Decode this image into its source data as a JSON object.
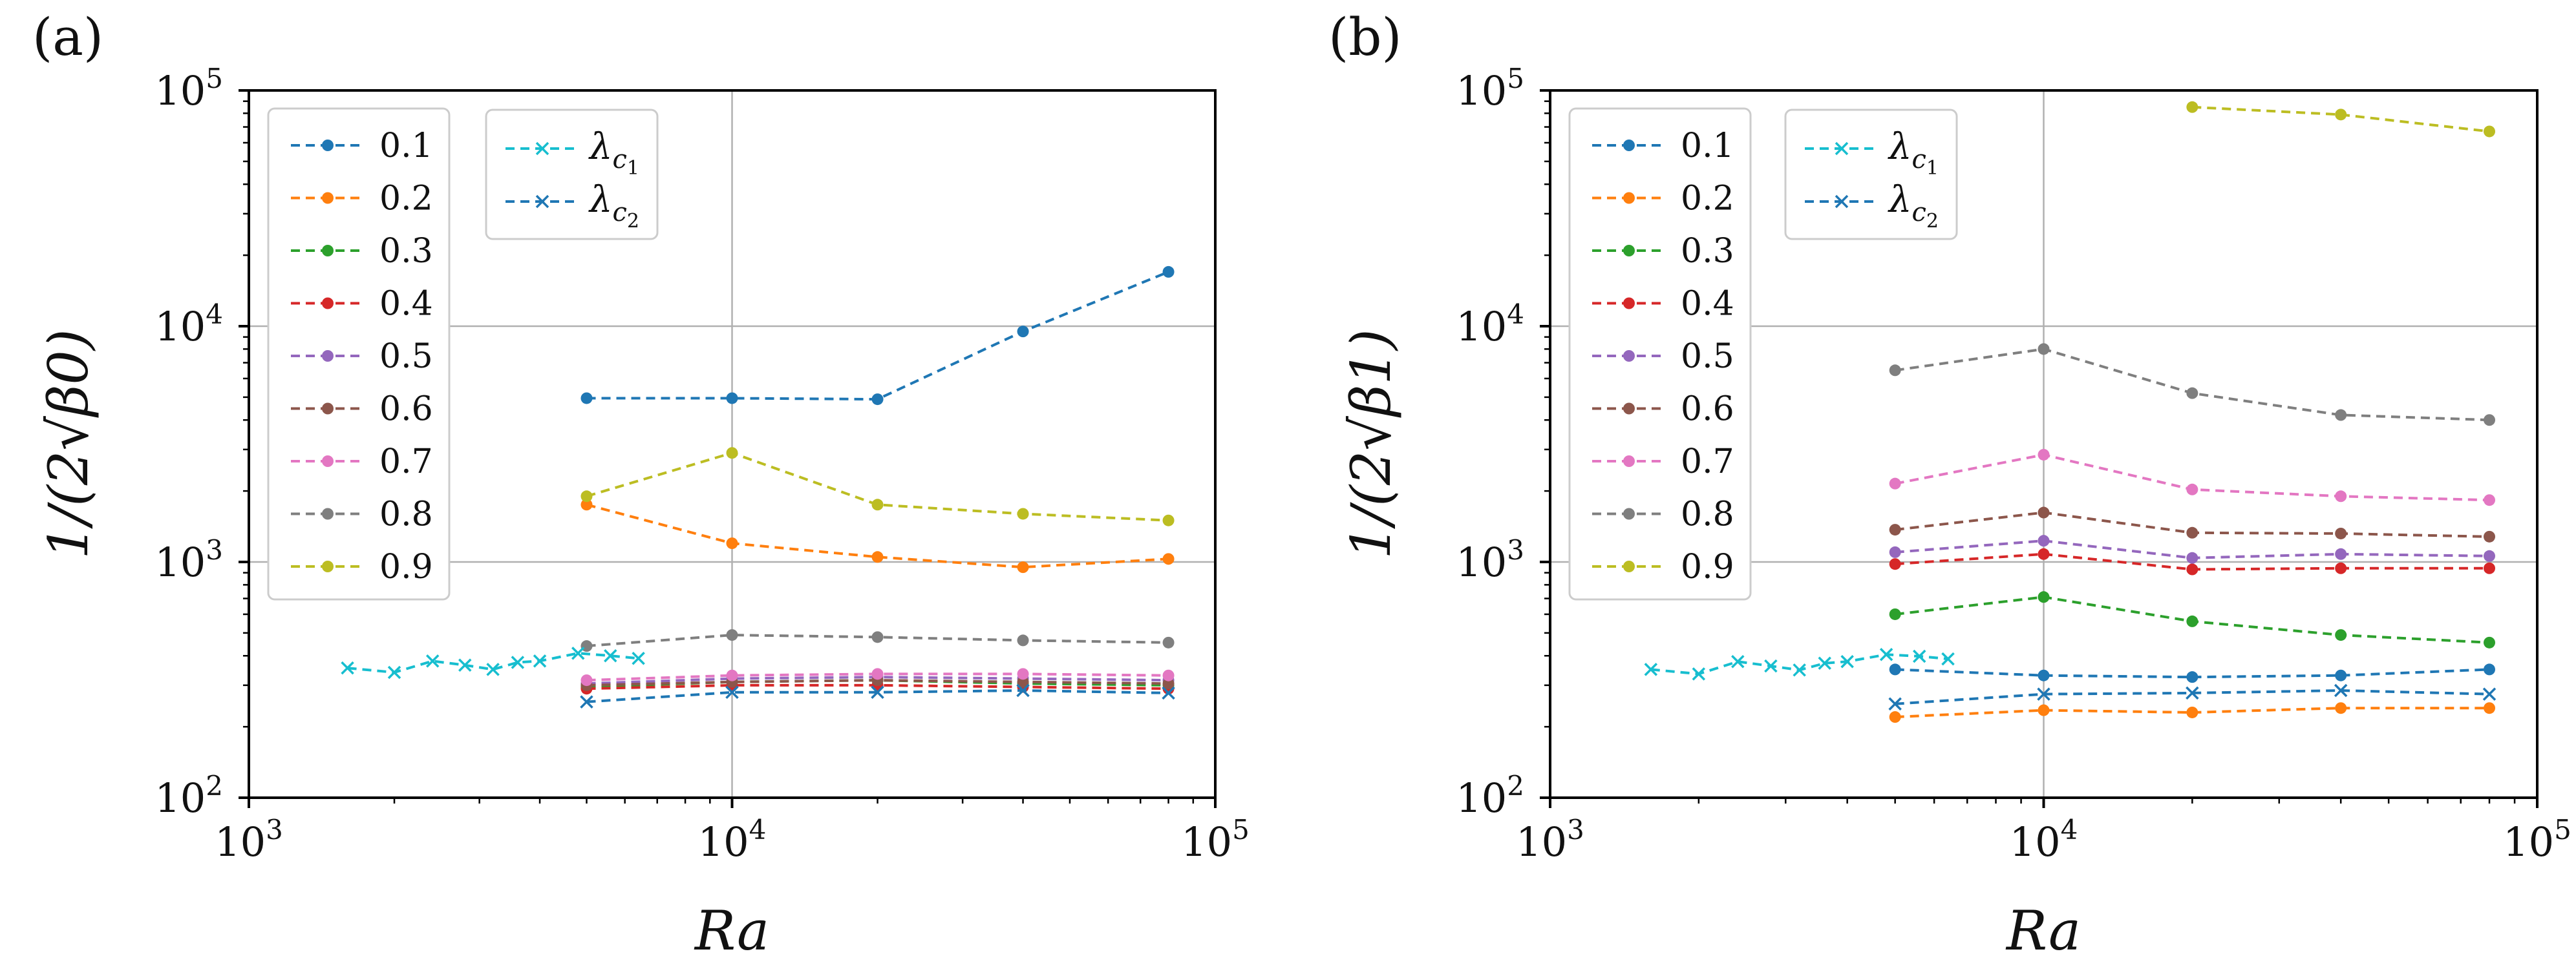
{
  "colors": {
    "0.1": "#1f77b4",
    "0.2": "#ff7f0e",
    "0.3": "#2ca02c",
    "0.4": "#d62728",
    "0.5": "#9467bd",
    "0.6": "#8c564b",
    "0.7": "#e377c2",
    "0.8": "#7f7f7f",
    "0.9": "#bcbd22",
    "lambda1": "#17becf",
    "lambda2": "#1f77b4"
  },
  "chart_data": [
    {
      "panel_label": "(a)",
      "type": "line",
      "xscale": "log",
      "yscale": "log",
      "xlim": [
        1000,
        100000
      ],
      "ylim": [
        100,
        100000
      ],
      "xlabel": "Ra",
      "ylabel": "1/(2√β0)",
      "xticks": [
        {
          "base": "10",
          "exp": "3"
        },
        {
          "base": "10",
          "exp": "4"
        },
        {
          "base": "10",
          "exp": "5"
        }
      ],
      "yticks": [
        {
          "base": "10",
          "exp": "2"
        },
        {
          "base": "10",
          "exp": "3"
        },
        {
          "base": "10",
          "exp": "4"
        },
        {
          "base": "10",
          "exp": "5"
        }
      ],
      "grid": true,
      "legend_placement": "upper-left",
      "series": [
        {
          "name": "0.1",
          "color_key": "0.1",
          "marker": "dot",
          "x": [
            5000,
            10000,
            20000,
            40000,
            80000
          ],
          "y": [
            4950,
            4950,
            4900,
            9500,
            17000
          ]
        },
        {
          "name": "0.2",
          "color_key": "0.2",
          "marker": "dot",
          "x": [
            5000,
            10000,
            20000,
            40000,
            80000
          ],
          "y": [
            1750,
            1200,
            1050,
            950,
            1030
          ]
        },
        {
          "name": "0.3",
          "color_key": "0.3",
          "marker": "dot",
          "x": [
            5000,
            10000,
            20000,
            40000,
            80000
          ],
          "y": [
            295,
            310,
            315,
            305,
            300
          ]
        },
        {
          "name": "0.4",
          "color_key": "0.4",
          "marker": "dot",
          "x": [
            5000,
            10000,
            20000,
            40000,
            80000
          ],
          "y": [
            290,
            300,
            300,
            295,
            290
          ]
        },
        {
          "name": "0.5",
          "color_key": "0.5",
          "marker": "dot",
          "x": [
            5000,
            10000,
            20000,
            40000,
            80000
          ],
          "y": [
            305,
            320,
            325,
            320,
            315
          ]
        },
        {
          "name": "0.6",
          "color_key": "0.6",
          "marker": "dot",
          "x": [
            5000,
            10000,
            20000,
            40000,
            80000
          ],
          "y": [
            300,
            310,
            315,
            310,
            305
          ]
        },
        {
          "name": "0.7",
          "color_key": "0.7",
          "marker": "dot",
          "x": [
            5000,
            10000,
            20000,
            40000,
            80000
          ],
          "y": [
            315,
            330,
            335,
            335,
            330
          ]
        },
        {
          "name": "0.8",
          "color_key": "0.8",
          "marker": "dot",
          "x": [
            5000,
            10000,
            20000,
            40000,
            80000
          ],
          "y": [
            440,
            490,
            480,
            465,
            455
          ]
        },
        {
          "name": "0.9",
          "color_key": "0.9",
          "marker": "dot",
          "x": [
            5000,
            10000,
            20000,
            40000,
            80000
          ],
          "y": [
            1900,
            2900,
            1750,
            1600,
            1500
          ]
        },
        {
          "name": "λc1",
          "color_key": "lambda1",
          "marker": "x",
          "x": [
            1600,
            2000,
            2400,
            2800,
            3200,
            3600,
            4000,
            4800,
            5600,
            6400
          ],
          "y": [
            355,
            340,
            380,
            365,
            350,
            375,
            380,
            410,
            400,
            390
          ]
        },
        {
          "name": "λc2",
          "color_key": "lambda2",
          "marker": "x",
          "x": [
            5000,
            10000,
            20000,
            40000,
            80000
          ],
          "y": [
            255,
            280,
            280,
            285,
            278
          ]
        }
      ],
      "legend_main": [
        "0.1",
        "0.2",
        "0.3",
        "0.4",
        "0.5",
        "0.6",
        "0.7",
        "0.8",
        "0.9"
      ],
      "legend_lambda": [
        {
          "base": "λ",
          "sub": "c",
          "subsub": "1",
          "color_key": "lambda1"
        },
        {
          "base": "λ",
          "sub": "c",
          "subsub": "2",
          "color_key": "lambda2"
        }
      ]
    },
    {
      "panel_label": "(b)",
      "type": "line",
      "xscale": "log",
      "yscale": "log",
      "xlim": [
        1000,
        100000
      ],
      "ylim": [
        100,
        100000
      ],
      "xlabel": "Ra",
      "ylabel": "1/(2√β1)",
      "xticks": [
        {
          "base": "10",
          "exp": "3"
        },
        {
          "base": "10",
          "exp": "4"
        },
        {
          "base": "10",
          "exp": "5"
        }
      ],
      "yticks": [
        {
          "base": "10",
          "exp": "2"
        },
        {
          "base": "10",
          "exp": "3"
        },
        {
          "base": "10",
          "exp": "4"
        },
        {
          "base": "10",
          "exp": "5"
        }
      ],
      "grid": true,
      "legend_placement": "upper-left",
      "series": [
        {
          "name": "0.1",
          "color_key": "0.1",
          "marker": "dot",
          "x": [
            5000,
            10000,
            20000,
            40000,
            80000
          ],
          "y": [
            350,
            330,
            325,
            330,
            350
          ]
        },
        {
          "name": "0.2",
          "color_key": "0.2",
          "marker": "dot",
          "x": [
            5000,
            10000,
            20000,
            40000,
            80000
          ],
          "y": [
            220,
            235,
            230,
            240,
            240
          ]
        },
        {
          "name": "0.3",
          "color_key": "0.3",
          "marker": "dot",
          "x": [
            5000,
            10000,
            20000,
            40000,
            80000
          ],
          "y": [
            600,
            710,
            560,
            490,
            455
          ]
        },
        {
          "name": "0.4",
          "color_key": "0.4",
          "marker": "dot",
          "x": [
            5000,
            10000,
            20000,
            40000,
            80000
          ],
          "y": [
            980,
            1080,
            930,
            940,
            940
          ]
        },
        {
          "name": "0.5",
          "color_key": "0.5",
          "marker": "dot",
          "x": [
            5000,
            10000,
            20000,
            40000,
            80000
          ],
          "y": [
            1100,
            1230,
            1040,
            1080,
            1060
          ]
        },
        {
          "name": "0.6",
          "color_key": "0.6",
          "marker": "dot",
          "x": [
            5000,
            10000,
            20000,
            40000,
            80000
          ],
          "y": [
            1370,
            1620,
            1330,
            1320,
            1280
          ]
        },
        {
          "name": "0.7",
          "color_key": "0.7",
          "marker": "dot",
          "x": [
            5000,
            10000,
            20000,
            40000,
            80000
          ],
          "y": [
            2150,
            2850,
            2030,
            1900,
            1830
          ]
        },
        {
          "name": "0.8",
          "color_key": "0.8",
          "marker": "dot",
          "x": [
            5000,
            10000,
            20000,
            40000,
            80000
          ],
          "y": [
            6500,
            8000,
            5200,
            4200,
            4000
          ]
        },
        {
          "name": "0.9",
          "color_key": "0.9",
          "marker": "dot",
          "x": [
            20000,
            40000,
            80000
          ],
          "y": [
            85000,
            79000,
            67000
          ]
        },
        {
          "name": "λc1",
          "color_key": "lambda1",
          "marker": "x",
          "x": [
            1600,
            2000,
            2400,
            2800,
            3200,
            3600,
            4000,
            4800,
            5600,
            6400
          ],
          "y": [
            350,
            335,
            378,
            362,
            348,
            372,
            378,
            405,
            398,
            388
          ]
        },
        {
          "name": "λc2",
          "color_key": "lambda2",
          "marker": "x",
          "x": [
            5000,
            10000,
            20000,
            40000,
            80000
          ],
          "y": [
            250,
            275,
            278,
            285,
            275
          ]
        }
      ],
      "legend_main": [
        "0.1",
        "0.2",
        "0.3",
        "0.4",
        "0.5",
        "0.6",
        "0.7",
        "0.8",
        "0.9"
      ],
      "legend_lambda": [
        {
          "base": "λ",
          "sub": "c",
          "subsub": "1",
          "color_key": "lambda1"
        },
        {
          "base": "λ",
          "sub": "c",
          "subsub": "2",
          "color_key": "lambda2"
        }
      ]
    }
  ]
}
